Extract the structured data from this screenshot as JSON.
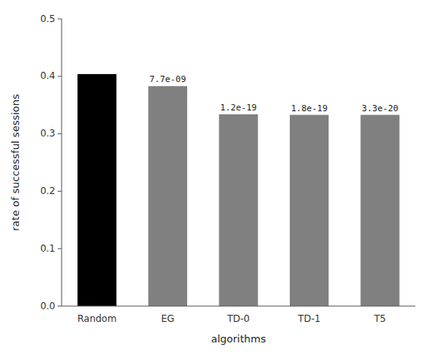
{
  "chart_data": {
    "type": "bar",
    "categories": [
      "Random",
      "EG",
      "TD-0",
      "TD-1",
      "T5"
    ],
    "values": [
      0.404,
      0.383,
      0.334,
      0.333,
      0.333
    ],
    "colors": [
      "#000000",
      "#808080",
      "#808080",
      "#808080",
      "#808080"
    ],
    "annotations": [
      null,
      "7.7e-09",
      "1.2e-19",
      "1.8e-19",
      "3.3e-20"
    ],
    "xlabel": "algorithms",
    "ylabel": "rate of successful sessions",
    "ylim": [
      0.0,
      0.5
    ],
    "yticks": [
      {
        "value": 0.0,
        "label": "0.0"
      },
      0.1,
      0.2,
      0.3,
      0.4,
      0.5
    ],
    "grid": false
  }
}
